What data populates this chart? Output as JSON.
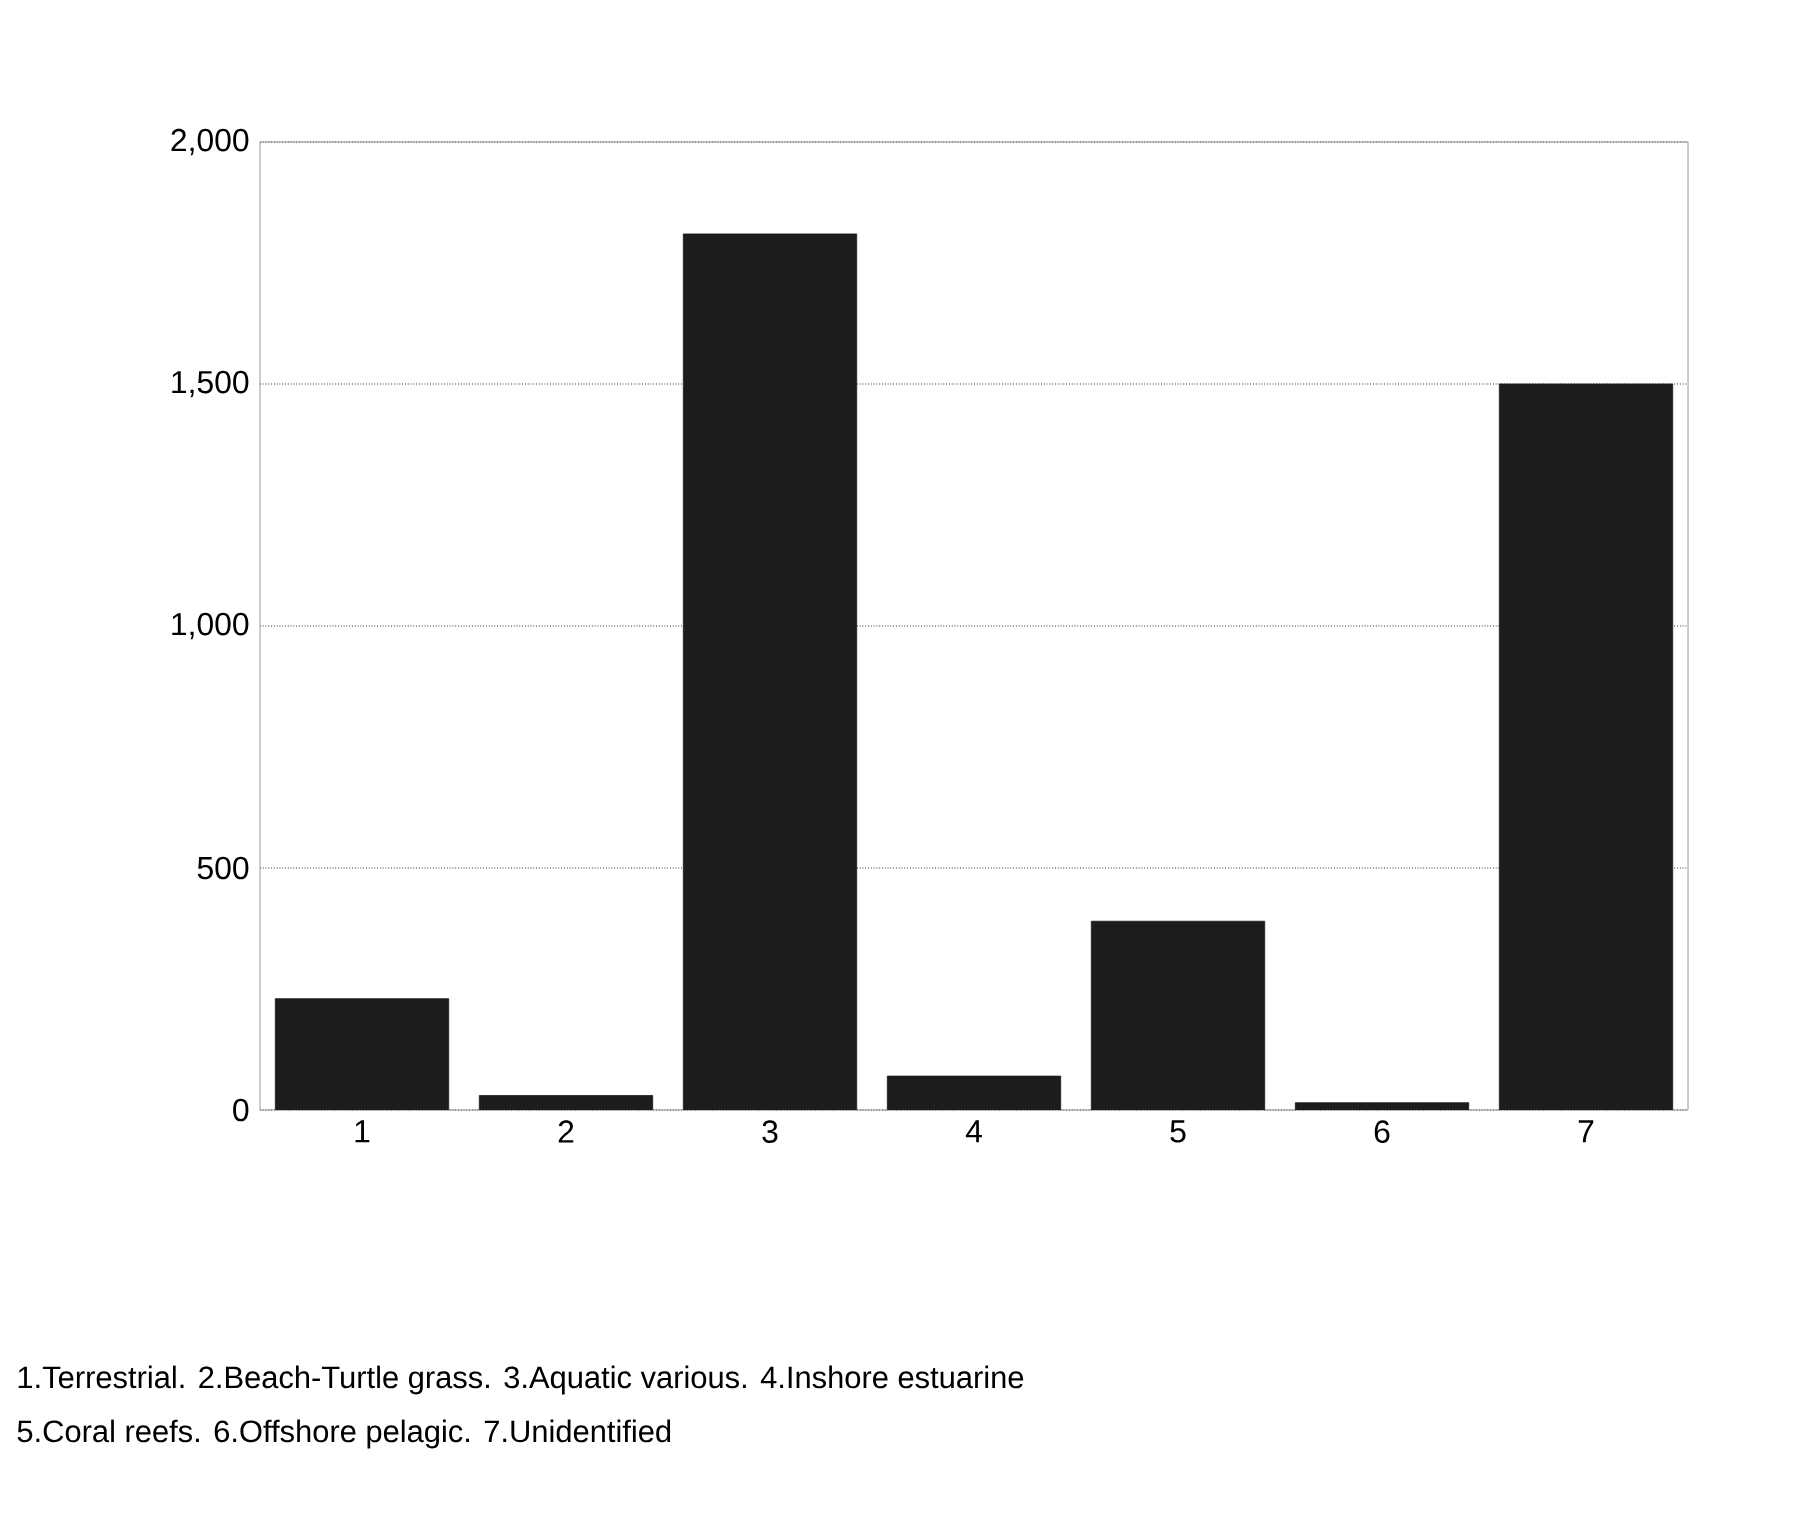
{
  "chart_data": {
    "type": "bar",
    "categories": [
      "1",
      "2",
      "3",
      "4",
      "5",
      "6",
      "7"
    ],
    "values": [
      230,
      30,
      1810,
      70,
      390,
      15,
      1500
    ],
    "color": "#1c1c1c",
    "ylim": [
      0,
      2000
    ],
    "yticks": [
      0,
      500,
      {
        "value": 1000,
        "label": "1,000"
      },
      {
        "value": 1500,
        "label": "1,500"
      },
      {
        "value": 2000,
        "label": "2,000"
      }
    ],
    "grid": "y",
    "annotations": [
      "1.Terrestrial. 2.Beach-Turtle grass. 3.Aquatic various. 4.Inshore estuarine",
      "5.Coral reefs. 6.Offshore pelagic. 7.Unidentified"
    ]
  }
}
